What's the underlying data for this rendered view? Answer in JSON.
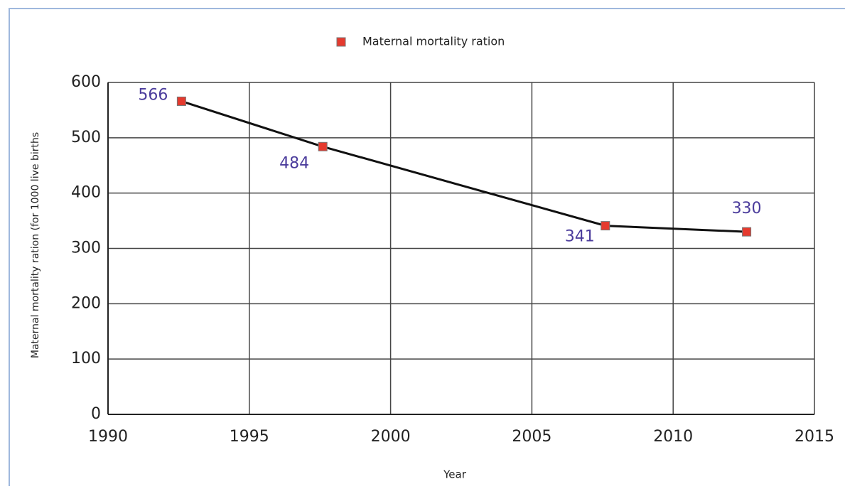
{
  "chart_data": {
    "type": "line",
    "y_label": "Maternal mortality ration (for 1000 live births",
    "x_label": "Year",
    "x": [
      1992.6,
      1997.6,
      2007.6,
      2012.6
    ],
    "series": [
      {
        "name": "Maternal mortality ration",
        "color": "#e53a2e",
        "values": [
          566,
          484,
          341,
          330
        ]
      }
    ],
    "xlim": [
      1990,
      2015
    ],
    "xticks": [
      1990,
      1995,
      2000,
      2005,
      2010,
      2015
    ],
    "ylim": [
      0,
      600
    ],
    "yticks": [
      0,
      100,
      200,
      300,
      400,
      500,
      600
    ],
    "grid": true,
    "legend": "top"
  }
}
